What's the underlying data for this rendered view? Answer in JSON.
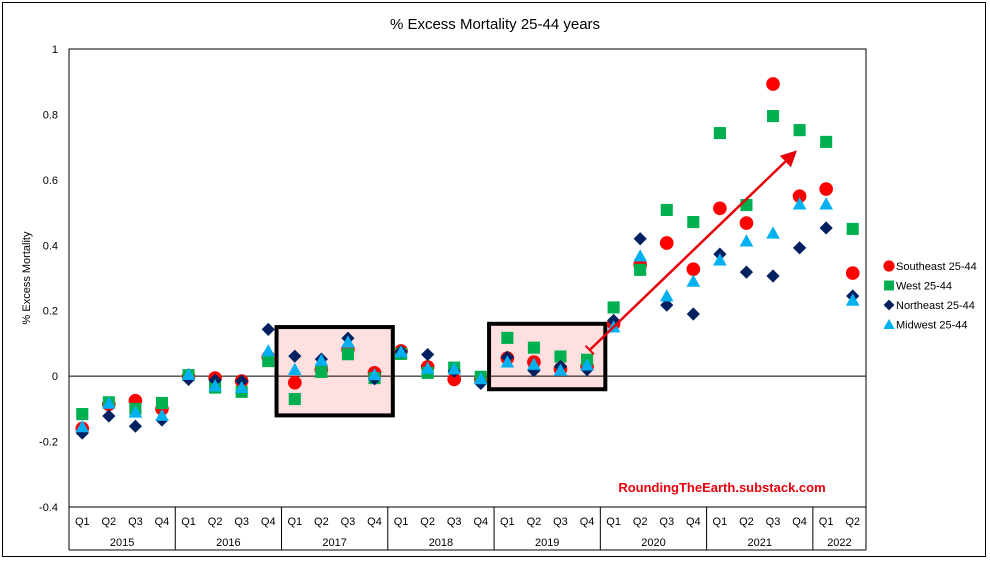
{
  "chart_data": {
    "type": "scatter",
    "title": "% Excess Mortality 25-44 years",
    "xlabel": "",
    "ylabel": "% Excess Mortality",
    "ylim": [
      -0.4,
      1
    ],
    "yticks": [
      -0.4,
      -0.2,
      0,
      0.2,
      0.4,
      0.6,
      0.8,
      1
    ],
    "ytick_labels": [
      "-0.4",
      "-0.2",
      "0",
      "0.2",
      "0.4",
      "0.6",
      "0.8",
      "1"
    ],
    "grid": false,
    "legend_position": "right",
    "categories": [
      "Q1",
      "Q2",
      "Q3",
      "Q4",
      "Q1",
      "Q2",
      "Q3",
      "Q4",
      "Q1",
      "Q2",
      "Q3",
      "Q4",
      "Q1",
      "Q2",
      "Q3",
      "Q4",
      "Q1",
      "Q2",
      "Q3",
      "Q4",
      "Q1",
      "Q2",
      "Q3",
      "Q4",
      "Q1",
      "Q2",
      "Q3",
      "Q4",
      "Q1",
      "Q2"
    ],
    "year_groups": [
      {
        "label": "2015",
        "quarters": 4
      },
      {
        "label": "2016",
        "quarters": 4
      },
      {
        "label": "2017",
        "quarters": 4
      },
      {
        "label": "2018",
        "quarters": 4
      },
      {
        "label": "2019",
        "quarters": 4
      },
      {
        "label": "2020",
        "quarters": 4
      },
      {
        "label": "2021",
        "quarters": 4
      },
      {
        "label": "2022",
        "quarters": 2
      }
    ],
    "series": [
      {
        "name": "Southeast 25-44",
        "marker": "circle",
        "color": "#ff0000",
        "values": [
          -0.16,
          -0.086,
          -0.075,
          -0.1,
          0.0,
          -0.006,
          -0.015,
          0.058,
          -0.02,
          0.02,
          0.082,
          0.01,
          0.077,
          0.028,
          -0.01,
          -0.01,
          0.055,
          0.043,
          0.022,
          0.03,
          0.16,
          0.34,
          0.407,
          0.327,
          0.513,
          0.468,
          0.893,
          0.55,
          0.572,
          0.315
        ]
      },
      {
        "name": "West 25-44",
        "marker": "square",
        "color": "#00b050",
        "values": [
          -0.116,
          -0.08,
          -0.1,
          -0.082,
          0.003,
          -0.035,
          -0.048,
          0.046,
          -0.07,
          0.013,
          0.067,
          -0.006,
          0.068,
          0.01,
          0.026,
          -0.002,
          0.117,
          0.087,
          0.06,
          0.05,
          0.21,
          0.325,
          0.508,
          0.471,
          0.743,
          0.523,
          0.795,
          0.752,
          0.716,
          0.45
        ]
      },
      {
        "name": "Northeast 25-44",
        "marker": "diamond",
        "color": "#002060",
        "values": [
          -0.174,
          -0.122,
          -0.153,
          -0.134,
          -0.01,
          -0.012,
          -0.015,
          0.143,
          0.061,
          0.052,
          0.116,
          -0.008,
          0.075,
          0.066,
          0.015,
          -0.022,
          0.058,
          0.017,
          0.03,
          0.02,
          0.17,
          0.42,
          0.217,
          0.19,
          0.373,
          0.318,
          0.306,
          0.392,
          0.453,
          0.245
        ]
      },
      {
        "name": "Midwest 25-44",
        "marker": "triangle",
        "color": "#00b0f0",
        "values": [
          -0.155,
          -0.083,
          -0.11,
          -0.12,
          0.005,
          -0.03,
          -0.035,
          0.077,
          0.02,
          0.048,
          0.104,
          0.004,
          0.074,
          0.024,
          0.022,
          -0.008,
          0.043,
          0.036,
          0.018,
          0.034,
          0.15,
          0.367,
          0.245,
          0.29,
          0.355,
          0.413,
          0.437,
          0.526,
          0.526,
          0.232
        ]
      }
    ],
    "annotations": [
      {
        "type": "highlight-box",
        "from_index": 8,
        "to_index": 11,
        "ylim": [
          -0.12,
          0.15
        ],
        "fill": "#ffe0e0",
        "stroke": "#000000"
      },
      {
        "type": "highlight-box",
        "from_index": 16,
        "to_index": 19,
        "ylim": [
          -0.04,
          0.16
        ],
        "fill": "#ffe0e0",
        "stroke": "#000000"
      },
      {
        "type": "arrow",
        "from": {
          "index": 19.6,
          "y": 0.08
        },
        "to": {
          "index": 27.4,
          "y": 0.69
        },
        "color": "#e8000b"
      },
      {
        "type": "text",
        "text": "RoundingTheEarth.substack.com",
        "color": "#e8000b"
      }
    ]
  }
}
